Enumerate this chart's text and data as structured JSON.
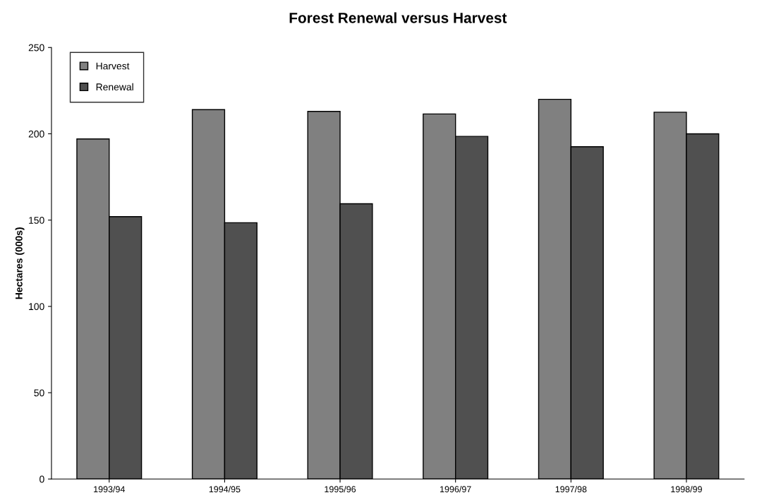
{
  "chart_data": {
    "type": "bar",
    "title": "Forest Renewal versus Harvest",
    "ylabel": "Hectares (000s)",
    "categories": [
      "1993/94",
      "1994/95",
      "1995/96",
      "1996/97",
      "1997/98",
      "1998/99"
    ],
    "series": [
      {
        "name": "Harvest",
        "color": "#808080",
        "values": [
          197,
          214,
          213,
          211.5,
          220,
          212.5
        ]
      },
      {
        "name": "Renewal",
        "color": "#505050",
        "values": [
          152,
          148.5,
          159.5,
          198.5,
          192.5,
          200
        ]
      }
    ],
    "ylim": [
      0,
      250
    ],
    "yticks": [
      0,
      50,
      100,
      150,
      200,
      250
    ],
    "grid": false,
    "legend": "top left"
  }
}
